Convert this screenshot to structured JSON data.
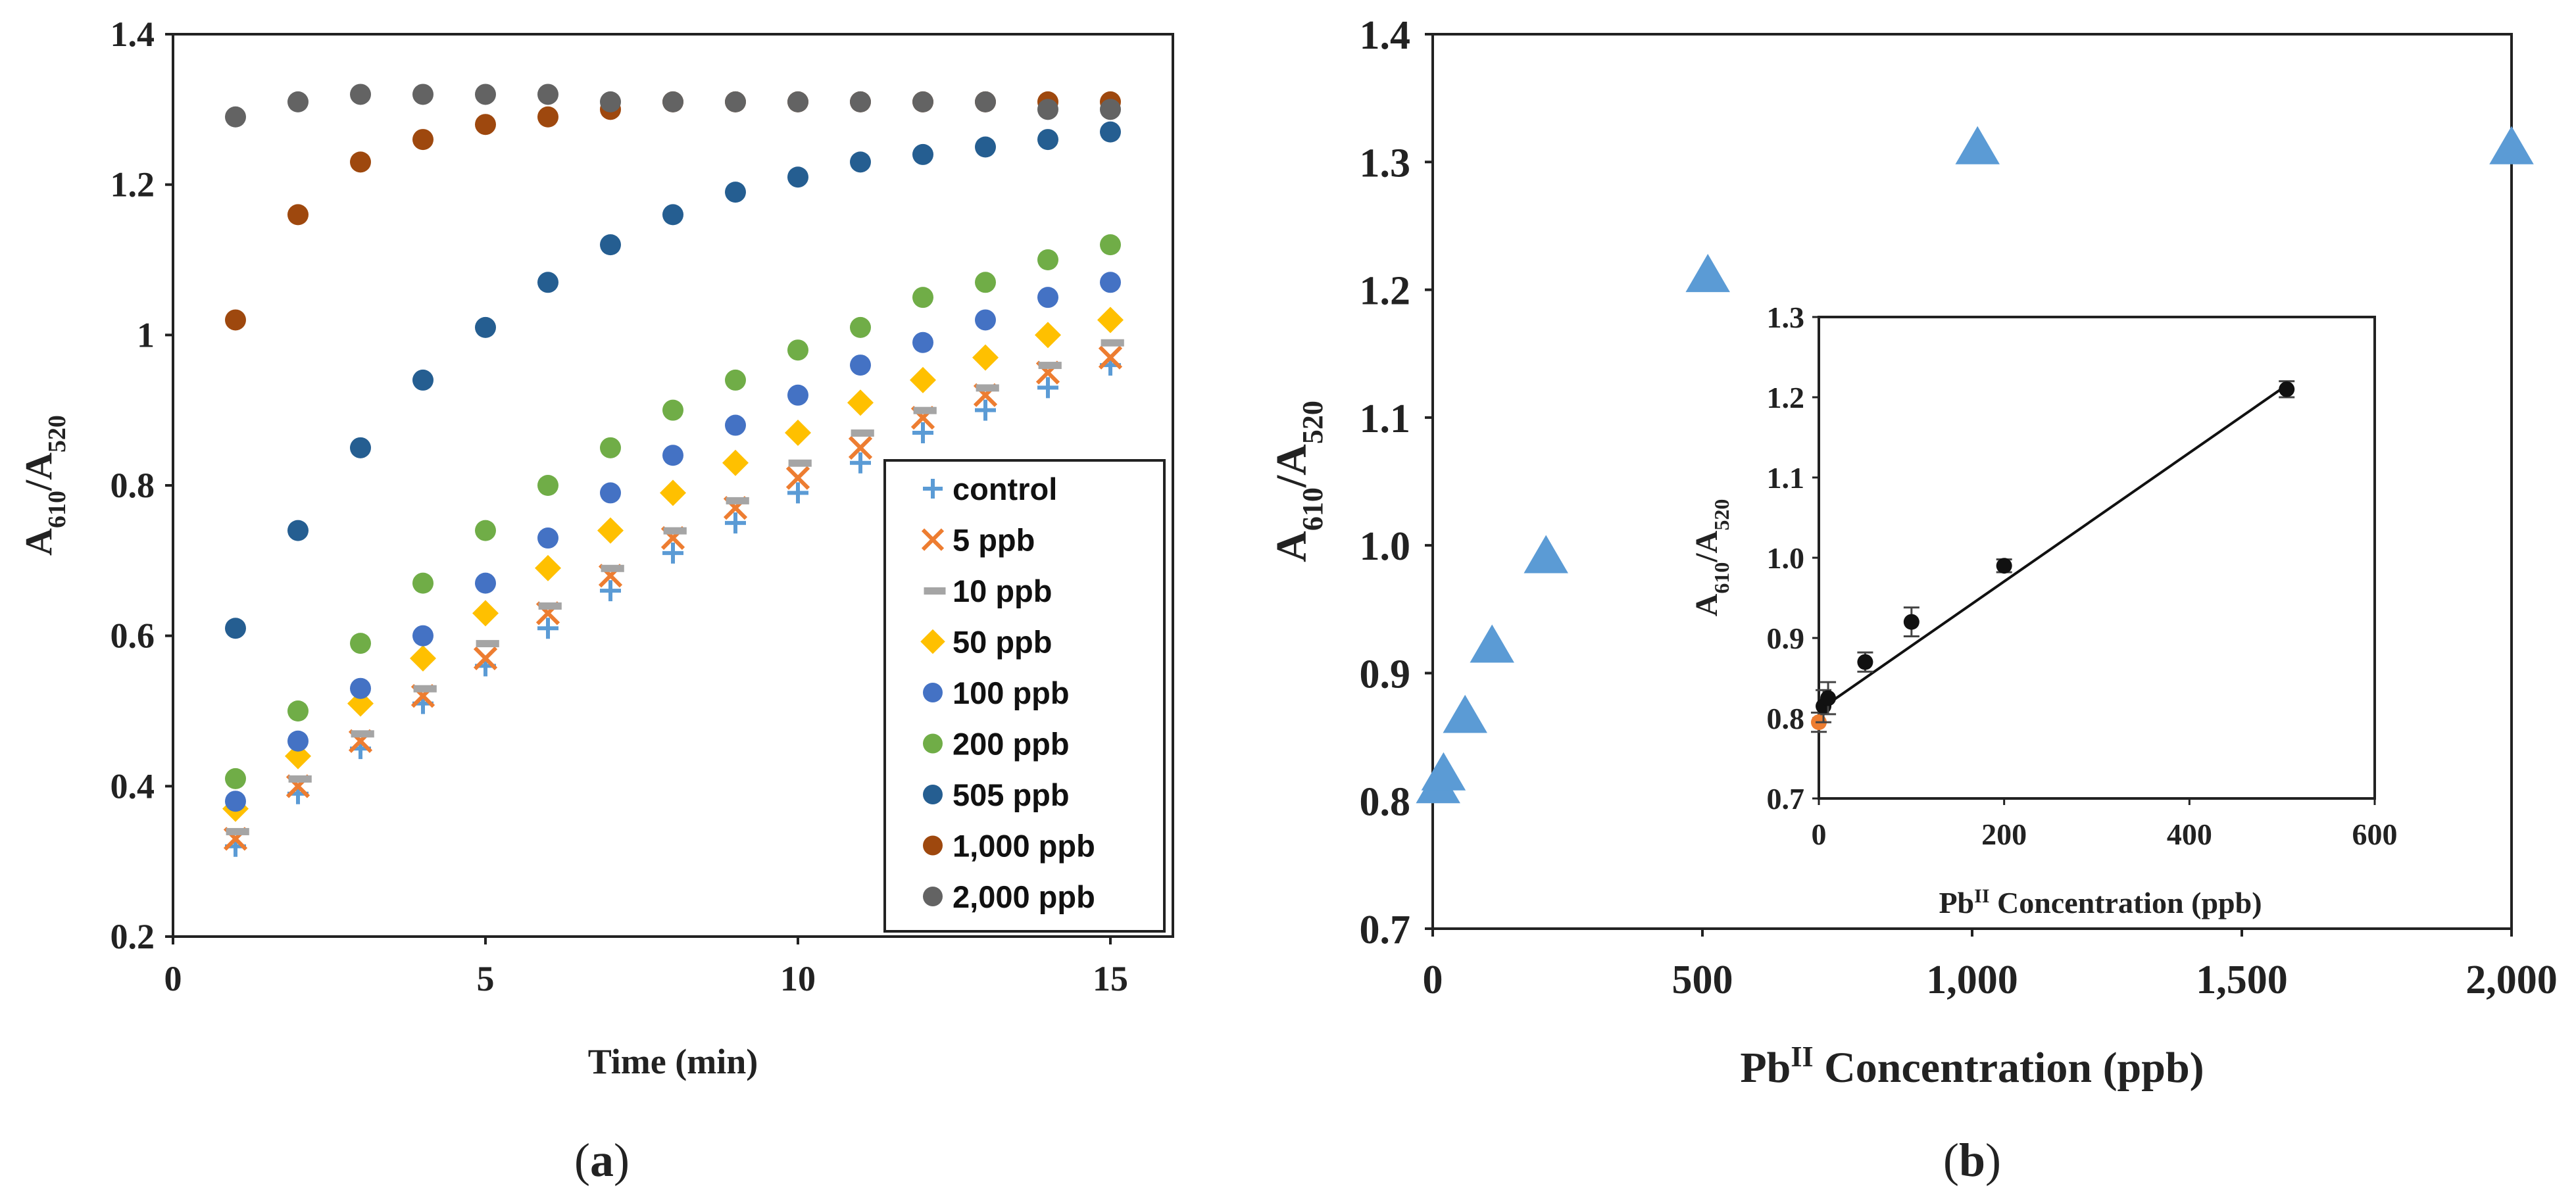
{
  "chart_data": [
    {
      "panel": "(a)",
      "type": "scatter",
      "xlabel": "Time (min)",
      "ylabel": "A610/A520",
      "ylabel_main": "A",
      "ylabel_sub1": "610",
      "ylabel_sep": "/A",
      "ylabel_sub2": "520",
      "xlim": [
        0,
        16
      ],
      "ylim": [
        0.2,
        1.4
      ],
      "xticks": [
        0,
        5,
        10,
        15
      ],
      "yticks": [
        0.2,
        0.4,
        0.6,
        0.8,
        1,
        1.2,
        1.4
      ],
      "ytick_labels": [
        "0.2",
        "0.4",
        "0.6",
        "0.8",
        "1",
        "1.2",
        "1.4"
      ],
      "x": [
        1,
        2,
        3,
        4,
        5,
        6,
        7,
        8,
        9,
        10,
        11,
        12,
        13,
        14,
        15
      ],
      "series": [
        {
          "name": "control",
          "marker": "plus",
          "color": "#5b9bd5",
          "values": [
            0.32,
            0.39,
            0.45,
            0.51,
            0.56,
            0.61,
            0.66,
            0.71,
            0.75,
            0.79,
            0.83,
            0.87,
            0.9,
            0.93,
            0.96
          ]
        },
        {
          "name": "5 ppb",
          "marker": "x",
          "color": "#ed7d31",
          "values": [
            0.33,
            0.4,
            0.46,
            0.52,
            0.57,
            0.63,
            0.68,
            0.73,
            0.77,
            0.81,
            0.85,
            0.89,
            0.92,
            0.95,
            0.97
          ]
        },
        {
          "name": "10 ppb",
          "marker": "dash",
          "color": "#a5a5a5",
          "values": [
            0.34,
            0.41,
            0.47,
            0.53,
            0.59,
            0.64,
            0.69,
            0.74,
            0.78,
            0.83,
            0.87,
            0.9,
            0.93,
            0.96,
            0.99
          ]
        },
        {
          "name": "50 ppb",
          "marker": "diamond",
          "color": "#ffc000",
          "values": [
            0.37,
            0.44,
            0.51,
            0.57,
            0.63,
            0.69,
            0.74,
            0.79,
            0.83,
            0.87,
            0.91,
            0.94,
            0.97,
            1.0,
            1.02
          ]
        },
        {
          "name": "100 ppb",
          "marker": "circle",
          "color": "#4472c4",
          "values": [
            0.38,
            0.46,
            0.53,
            0.6,
            0.67,
            0.73,
            0.79,
            0.84,
            0.88,
            0.92,
            0.96,
            0.99,
            1.02,
            1.05,
            1.07
          ]
        },
        {
          "name": "200 ppb",
          "marker": "circle",
          "color": "#70ad47",
          "values": [
            0.41,
            0.5,
            0.59,
            0.67,
            0.74,
            0.8,
            0.85,
            0.9,
            0.94,
            0.98,
            1.01,
            1.05,
            1.07,
            1.1,
            1.12
          ]
        },
        {
          "name": "505 ppb",
          "marker": "circle",
          "color": "#255e91",
          "values": [
            0.61,
            0.74,
            0.85,
            0.94,
            1.01,
            1.07,
            1.12,
            1.16,
            1.19,
            1.21,
            1.23,
            1.24,
            1.25,
            1.26,
            1.27
          ]
        },
        {
          "name": "1,000 ppb",
          "marker": "circle",
          "color": "#9e480e",
          "values": [
            1.02,
            1.16,
            1.23,
            1.26,
            1.28,
            1.29,
            1.3,
            1.31,
            1.31,
            1.31,
            1.31,
            1.31,
            1.31,
            1.31,
            1.31
          ]
        },
        {
          "name": "2,000 ppb",
          "marker": "circle",
          "color": "#636363",
          "values": [
            1.29,
            1.31,
            1.32,
            1.32,
            1.32,
            1.32,
            1.31,
            1.31,
            1.31,
            1.31,
            1.31,
            1.31,
            1.31,
            1.3,
            1.3
          ]
        }
      ],
      "legend": "bottom-right"
    },
    {
      "panel": "(b)",
      "type": "scatter",
      "xlabel": "PbII Concentration (ppb)",
      "xlabel_main": "Pb",
      "xlabel_sup": "II",
      "xlabel_rest": " Concentration (ppb)",
      "ylabel": "A610/A520",
      "ylabel_main": "A",
      "ylabel_sub1": "610",
      "ylabel_sep": "/A",
      "ylabel_sub2": "520",
      "xlim": [
        0,
        2000
      ],
      "ylim": [
        0.7,
        1.4
      ],
      "xticks": [
        0,
        500,
        1000,
        1500,
        2000
      ],
      "xtick_labels": [
        "0",
        "500",
        "1,000",
        "1,500",
        "2,000"
      ],
      "yticks": [
        0.7,
        0.8,
        0.9,
        1.0,
        1.1,
        1.2,
        1.3,
        1.4
      ],
      "ytick_labels": [
        "0.7",
        "0.8",
        "0.9",
        "1.0",
        "1.1",
        "1.2",
        "1.3",
        "1.4"
      ],
      "color": "#5b9bd5",
      "marker": "triangle",
      "points": [
        {
          "x": 10,
          "y": 0.81
        },
        {
          "x": 20,
          "y": 0.82
        },
        {
          "x": 60,
          "y": 0.865
        },
        {
          "x": 110,
          "y": 0.92
        },
        {
          "x": 210,
          "y": 0.99
        },
        {
          "x": 510,
          "y": 1.21
        },
        {
          "x": 1010,
          "y": 1.31
        },
        {
          "x": 2000,
          "y": 1.31
        }
      ],
      "inset": {
        "xlabel_main": "Pb",
        "xlabel_sup": "II",
        "xlabel_rest": " Concentration (ppb)",
        "ylabel_main": "A",
        "ylabel_sub1": "610",
        "ylabel_sep": "/A",
        "ylabel_sub2": "520",
        "xlim": [
          0,
          600
        ],
        "ylim": [
          0.7,
          1.3
        ],
        "xticks": [
          0,
          200,
          400,
          600
        ],
        "yticks": [
          0.7,
          0.8,
          0.9,
          1.0,
          1.1,
          1.2,
          1.3
        ],
        "ytick_labels": [
          "0.7",
          "0.8",
          "0.9",
          "1.0",
          "1.1",
          "1.2",
          "1.3"
        ],
        "points": [
          {
            "x": 0,
            "y": 0.795,
            "err": 0.012,
            "color": "#ed7d31"
          },
          {
            "x": 5,
            "y": 0.815,
            "err": 0.02,
            "color": "#111111"
          },
          {
            "x": 10,
            "y": 0.825,
            "err": 0.02,
            "color": "#111111"
          },
          {
            "x": 50,
            "y": 0.87,
            "err": 0.012,
            "color": "#111111"
          },
          {
            "x": 100,
            "y": 0.92,
            "err": 0.018,
            "color": "#111111"
          },
          {
            "x": 200,
            "y": 0.99,
            "err": 0.008,
            "color": "#111111"
          },
          {
            "x": 505,
            "y": 1.21,
            "err": 0.01,
            "color": "#111111"
          }
        ],
        "fit": {
          "x0": 0,
          "y0": 0.81,
          "x1": 505,
          "y1": 1.215
        }
      }
    }
  ],
  "captions": {
    "a": "a",
    "b": "b"
  }
}
